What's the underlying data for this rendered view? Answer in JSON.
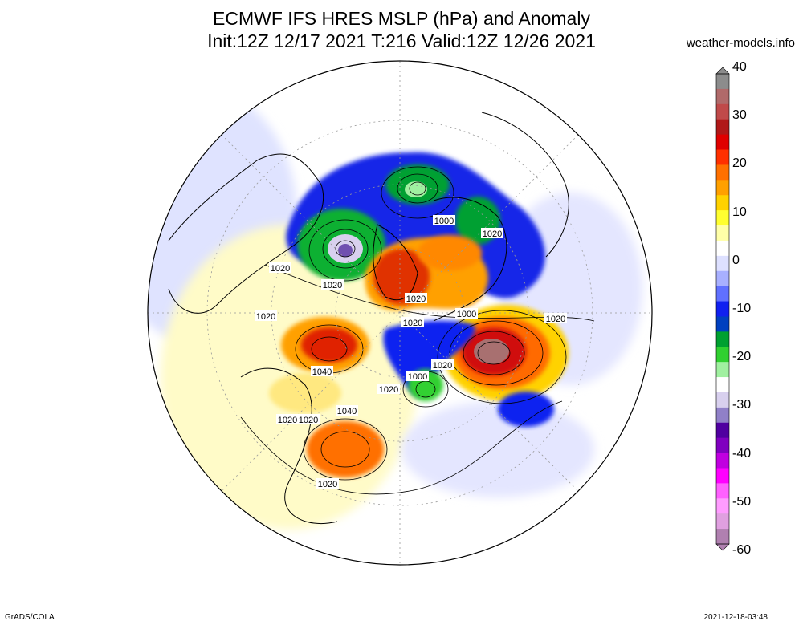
{
  "title": {
    "line1": "ECMWF IFS HRES MSLP (hPa) and Anomaly",
    "line2": "Init:12Z 12/17 2021 T:216 Valid:12Z 12/26 2021"
  },
  "site": "weather-models.info",
  "footer": {
    "left": "GrADS/COLA",
    "right": "2021-12-18-03:48"
  },
  "colorbar": {
    "ticks": [
      "40",
      "30",
      "20",
      "10",
      "0",
      "-10",
      "-20",
      "-30",
      "-40",
      "-50",
      "-60"
    ],
    "colors": [
      "#8c8c8c",
      "#b06a6a",
      "#c04a4a",
      "#b01818",
      "#e00000",
      "#ff3000",
      "#ff7000",
      "#ffa000",
      "#ffd200",
      "#ffff30",
      "#ffffa8",
      "#ffffff",
      "#dde0ff",
      "#a8b0ff",
      "#6070ff",
      "#1020f0",
      "#0040c0",
      "#00a030",
      "#30d030",
      "#a0f0a0",
      "#ffffff",
      "#d8d0ee",
      "#9080c8",
      "#5000a0",
      "#8000c0",
      "#c000e0",
      "#ff00ff",
      "#ff60ff",
      "#ff9cff",
      "#e0a0e0",
      "#b080b0"
    ]
  },
  "map": {
    "projection": "north-polar-stereographic",
    "contour_labels": [
      {
        "id": "l1",
        "text": "1020"
      },
      {
        "id": "l2",
        "text": "1000"
      },
      {
        "id": "l3",
        "text": "1020"
      },
      {
        "id": "l4",
        "text": "1020"
      },
      {
        "id": "l5",
        "text": "1020"
      },
      {
        "id": "l6",
        "text": "1040"
      },
      {
        "id": "l7",
        "text": "1020"
      },
      {
        "id": "l8",
        "text": "1020"
      },
      {
        "id": "l9",
        "text": "1000"
      },
      {
        "id": "l10",
        "text": "1020"
      },
      {
        "id": "l11",
        "text": "1020"
      },
      {
        "id": "l12",
        "text": "1040"
      },
      {
        "id": "l13",
        "text": "1020"
      },
      {
        "id": "l14",
        "text": "1020"
      },
      {
        "id": "l15",
        "text": "1000"
      },
      {
        "id": "l16",
        "text": "1020"
      },
      {
        "id": "l17",
        "text": "1020"
      }
    ]
  }
}
